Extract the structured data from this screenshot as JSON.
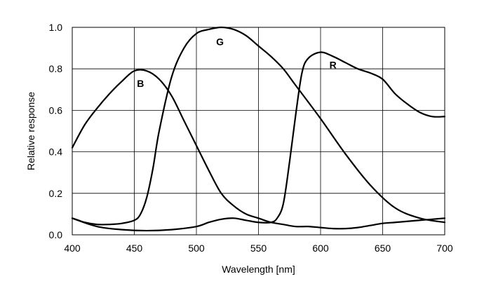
{
  "chart_data": {
    "type": "line",
    "title": "",
    "xlabel": "Wavelength [nm]",
    "ylabel": "Relative response",
    "xlim": [
      400,
      700
    ],
    "ylim": [
      0,
      1.0
    ],
    "x_ticks": [
      "400",
      "450",
      "500",
      "550",
      "600",
      "650",
      "700"
    ],
    "y_ticks": [
      "0.0",
      "0.2",
      "0.4",
      "0.6",
      "0.8",
      "1.0"
    ],
    "grid": true,
    "legend": "none",
    "series": [
      {
        "name": "B",
        "x": [
          400,
          405,
          410,
          420,
          430,
          440,
          450,
          455,
          460,
          465,
          470,
          480,
          490,
          500,
          510,
          520,
          530,
          540,
          550,
          560,
          570,
          580,
          600,
          620,
          640,
          660,
          680,
          700
        ],
        "y": [
          0.08,
          0.07,
          0.06,
          0.05,
          0.05,
          0.055,
          0.07,
          0.1,
          0.18,
          0.32,
          0.5,
          0.76,
          0.9,
          0.97,
          0.99,
          1.0,
          0.99,
          0.96,
          0.91,
          0.86,
          0.8,
          0.72,
          0.56,
          0.39,
          0.24,
          0.13,
          0.08,
          0.06
        ]
      },
      {
        "name": "G",
        "x": [
          400,
          410,
          420,
          430,
          440,
          450,
          460,
          470,
          480,
          490,
          500,
          510,
          520,
          530,
          540,
          550,
          560,
          570,
          580,
          590,
          600,
          610,
          620,
          630,
          640,
          650,
          660,
          670,
          680,
          690,
          700
        ],
        "y": [
          0.42,
          0.53,
          0.61,
          0.68,
          0.74,
          0.79,
          0.79,
          0.75,
          0.67,
          0.55,
          0.43,
          0.31,
          0.2,
          0.14,
          0.1,
          0.08,
          0.06,
          0.05,
          0.04,
          0.04,
          0.035,
          0.03,
          0.03,
          0.035,
          0.045,
          0.055,
          0.06,
          0.065,
          0.07,
          0.075,
          0.08
        ]
      },
      {
        "name": "R",
        "x": [
          400,
          420,
          440,
          460,
          480,
          500,
          510,
          520,
          530,
          540,
          550,
          560,
          565,
          570,
          575,
          580,
          585,
          590,
          600,
          610,
          620,
          630,
          640,
          650,
          660,
          670,
          680,
          690,
          700
        ],
        "y": [
          0.08,
          0.04,
          0.025,
          0.02,
          0.025,
          0.04,
          0.06,
          0.075,
          0.08,
          0.07,
          0.06,
          0.06,
          0.08,
          0.15,
          0.35,
          0.58,
          0.78,
          0.85,
          0.88,
          0.86,
          0.83,
          0.8,
          0.78,
          0.75,
          0.68,
          0.63,
          0.59,
          0.57,
          0.57
        ]
      }
    ],
    "curve_labels": [
      {
        "text": "B",
        "x": 455,
        "y": 0.73
      },
      {
        "text": "G",
        "x": 519,
        "y": 0.93
      },
      {
        "text": "R",
        "x": 610,
        "y": 0.82
      }
    ]
  }
}
